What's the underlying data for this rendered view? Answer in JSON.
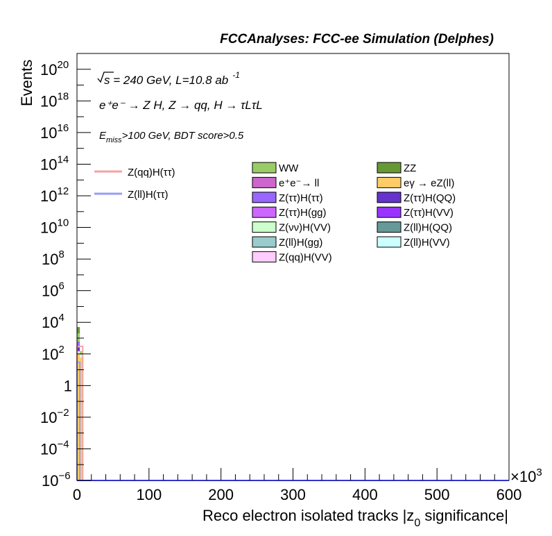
{
  "chart_data": {
    "type": "bar",
    "title": "FCCAnalyses: FCC-ee Simulation (Delphes)",
    "xlabel": {
      "main": "Reco electron isolated tracks |z",
      "sub": "0",
      "tail": " significance|"
    },
    "ylabel": "Events",
    "x_multiplier": {
      "base": "×10",
      "exp": "3"
    },
    "xlim": [
      0,
      600
    ],
    "ylim": [
      1e-06,
      1e+21
    ],
    "yscale": "log",
    "x_ticks": [
      "0",
      "100",
      "200",
      "300",
      "400",
      "500",
      "600"
    ],
    "y_ticks": [
      {
        "base": "10",
        "exp": "−6",
        "value": 1e-06
      },
      {
        "base": "10",
        "exp": "−4",
        "value": 0.0001
      },
      {
        "base": "10",
        "exp": "−2",
        "value": 0.01
      },
      {
        "base": "1",
        "exp": "",
        "value": 1
      },
      {
        "base": "10",
        "exp": "2",
        "value": 100.0
      },
      {
        "base": "10",
        "exp": "4",
        "value": 10000.0
      },
      {
        "base": "10",
        "exp": "6",
        "value": 1000000.0
      },
      {
        "base": "10",
        "exp": "8",
        "value": 100000000.0
      },
      {
        "base": "10",
        "exp": "10",
        "value": 10000000000.0
      },
      {
        "base": "10",
        "exp": "12",
        "value": 1000000000000.0
      },
      {
        "base": "10",
        "exp": "14",
        "value": 100000000000000.0
      },
      {
        "base": "10",
        "exp": "16",
        "value": 1e+16
      },
      {
        "base": "10",
        "exp": "18",
        "value": 1e+18
      },
      {
        "base": "10",
        "exp": "20",
        "value": 1e+20
      }
    ],
    "annotations": {
      "energy": {
        "prefix": "s",
        "text": " = 240 GeV, L=10.8 ab",
        "exp": "-1"
      },
      "process": "e⁺e⁻ → Z H, Z → qq, H → τLτL",
      "cut": {
        "var": "E",
        "sub": "miss",
        "text": ">100 GeV, BDT score>0.5"
      }
    },
    "legend_placement": "top-center",
    "signal_legend": [
      {
        "label": "Z(qq)H(ττ)",
        "color": "#f5a3a3"
      },
      {
        "label": "Z(ll)H(ττ)",
        "color": "#9a9af5"
      }
    ],
    "background_legend": [
      {
        "label": "WW",
        "color": "#99cc66"
      },
      {
        "label": "ZZ",
        "color": "#669933"
      },
      {
        "label": "e⁺e⁻→ ll",
        "color": "#cc66cc"
      },
      {
        "label": "eγ → eZ(ll)",
        "color": "#ffcc66"
      },
      {
        "label": "Z(ττ)H(ττ)",
        "color": "#9966ff"
      },
      {
        "label": "Z(ττ)H(QQ)",
        "color": "#6633cc"
      },
      {
        "label": "Z(ττ)H(gg)",
        "color": "#cc66ff"
      },
      {
        "label": "Z(ττ)H(VV)",
        "color": "#9933ff"
      },
      {
        "label": "Z(νν)H(VV)",
        "color": "#ccffcc"
      },
      {
        "label": "Z(ll)H(QQ)",
        "color": "#669999"
      },
      {
        "label": "Z(ll)H(gg)",
        "color": "#99cccc"
      },
      {
        "label": "Z(ll)H(VV)",
        "color": "#ccffff"
      },
      {
        "label": "Z(qq)H(VV)",
        "color": "#ffccff"
      }
    ],
    "stack_bins": [
      {
        "x0": 0,
        "x1": 4,
        "segments": [
          {
            "name": "eγ → eZ(ll)",
            "color": "#ffcc66",
            "y0": 1e-06,
            "y1": 100.0
          },
          {
            "name": "Z(ll)H(VV)",
            "color": "#ccffff",
            "y0": 100.0,
            "y1": 150.0
          },
          {
            "name": "Z(ττ)H(QQ)",
            "color": "#6633cc",
            "y0": 150.0,
            "y1": 250.0
          },
          {
            "name": "Z(ττ)H(ττ)",
            "color": "#9966ff",
            "y0": 250.0,
            "y1": 600.0
          },
          {
            "name": "WW",
            "color": "#99cc66",
            "y0": 600.0,
            "y1": 2000.0
          },
          {
            "name": "ZZ",
            "color": "#669933",
            "y0": 2000.0,
            "y1": 5000.0
          }
        ]
      },
      {
        "x0": 4,
        "x1": 8,
        "segments": [
          {
            "name": "eγ → eZ(ll)",
            "color": "#ffcc66",
            "y0": 1e-06,
            "y1": 60
          },
          {
            "name": "Z(ll)H(VV)",
            "color": "#ccffff",
            "y0": 60,
            "y1": 90
          },
          {
            "name": "WW",
            "color": "#99cc66",
            "y0": 90,
            "y1": 150
          }
        ]
      }
    ],
    "signal_bins": [
      {
        "name": "Z(qq)H(ττ)",
        "color": "#f5a3a3",
        "x0": 0,
        "x1": 8,
        "value": 300.0
      },
      {
        "name": "Z(ll)H(ττ)",
        "color": "#9a9af5",
        "x0": 0,
        "x1": 4,
        "value": 30
      }
    ]
  }
}
